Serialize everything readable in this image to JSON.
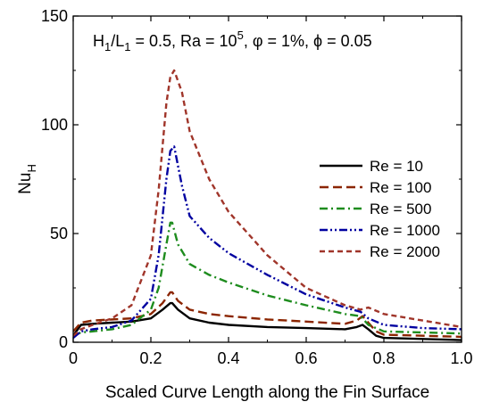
{
  "chart_data": {
    "type": "line",
    "title": "",
    "annotation": {
      "parts": [
        {
          "text": "H",
          "style": "normal"
        },
        {
          "text": "1",
          "style": "sub"
        },
        {
          "text": "/L",
          "style": "normal"
        },
        {
          "text": "1",
          "style": "sub"
        },
        {
          "text": " = 0.5,  Ra = 10",
          "style": "normal"
        },
        {
          "text": "5",
          "style": "sup"
        },
        {
          "text": ", φ = 1%, ϕ = 0.05",
          "style": "normal"
        }
      ]
    },
    "xlabel": "Scaled Curve Length along the Fin Surface",
    "ylabel": {
      "main": "Nu",
      "sub": "H"
    },
    "xlim": [
      0,
      1.0
    ],
    "ylim": [
      0,
      150
    ],
    "xticks": [
      0,
      0.2,
      0.4,
      0.6,
      0.8,
      1.0
    ],
    "xtick_labels": [
      "0",
      "0.2",
      "0.4",
      "0.6",
      "0.8",
      "1.0"
    ],
    "yticks": [
      0,
      50,
      100,
      150
    ],
    "ytick_labels": [
      "0",
      "50",
      "100",
      "150"
    ],
    "grid": false,
    "legend_position": "right",
    "series": [
      {
        "name": "Re = 10",
        "color": "#000000",
        "dash": "solid",
        "x": [
          0,
          0.02,
          0.05,
          0.1,
          0.15,
          0.2,
          0.23,
          0.25,
          0.255,
          0.27,
          0.3,
          0.35,
          0.4,
          0.5,
          0.6,
          0.7,
          0.73,
          0.745,
          0.76,
          0.78,
          0.8,
          0.9,
          1.0
        ],
        "y": [
          3,
          8,
          8.5,
          9,
          9.5,
          11,
          15,
          18,
          18,
          15,
          11,
          9,
          8,
          7,
          6.5,
          6,
          7,
          8,
          6,
          3,
          2,
          1.5,
          1
        ]
      },
      {
        "name": "Re = 100",
        "color": "#8B2500",
        "dash": "long-dash",
        "x": [
          0,
          0.02,
          0.05,
          0.1,
          0.15,
          0.2,
          0.23,
          0.25,
          0.255,
          0.27,
          0.3,
          0.35,
          0.4,
          0.5,
          0.6,
          0.7,
          0.73,
          0.745,
          0.76,
          0.78,
          0.8,
          0.9,
          1.0
        ],
        "y": [
          5,
          9,
          10,
          10.5,
          11,
          13,
          18,
          23,
          23,
          19,
          15,
          13,
          12,
          10.5,
          9.5,
          8.5,
          10,
          12,
          9,
          5,
          3.5,
          3,
          2.5
        ]
      },
      {
        "name": "Re = 500",
        "color": "#1E8C1E",
        "dash": "dash-dot",
        "x": [
          0,
          0.02,
          0.05,
          0.1,
          0.15,
          0.2,
          0.22,
          0.24,
          0.25,
          0.255,
          0.27,
          0.3,
          0.35,
          0.4,
          0.5,
          0.6,
          0.7,
          0.74,
          0.76,
          0.8,
          0.9,
          1.0
        ],
        "y": [
          3,
          4.5,
          5,
          6,
          8,
          15,
          25,
          45,
          55,
          55,
          45,
          36,
          31,
          27.5,
          21.5,
          17,
          13,
          12,
          8,
          5,
          4.5,
          4
        ]
      },
      {
        "name": "Re = 1000",
        "color": "#0000A0",
        "dash": "dash-dot-dot",
        "x": [
          0,
          0.02,
          0.05,
          0.1,
          0.15,
          0.2,
          0.22,
          0.24,
          0.25,
          0.26,
          0.28,
          0.3,
          0.35,
          0.4,
          0.5,
          0.6,
          0.7,
          0.74,
          0.76,
          0.8,
          0.9,
          1.0
        ],
        "y": [
          2,
          5,
          6,
          7,
          10,
          20,
          40,
          75,
          88,
          90,
          72,
          58,
          48,
          41,
          31,
          22,
          16,
          14,
          11,
          8,
          6.5,
          6
        ]
      },
      {
        "name": "Re = 2000",
        "color": "#A0352A",
        "dash": "short-dash",
        "x": [
          0,
          0.02,
          0.05,
          0.1,
          0.15,
          0.2,
          0.22,
          0.24,
          0.25,
          0.26,
          0.28,
          0.3,
          0.35,
          0.4,
          0.5,
          0.6,
          0.7,
          0.74,
          0.76,
          0.8,
          0.9,
          1.0
        ],
        "y": [
          3,
          6,
          8,
          11,
          17,
          40,
          70,
          110,
          122,
          125,
          115,
          97,
          75,
          60,
          40,
          25,
          17,
          15,
          16,
          13,
          10,
          7
        ]
      }
    ]
  }
}
